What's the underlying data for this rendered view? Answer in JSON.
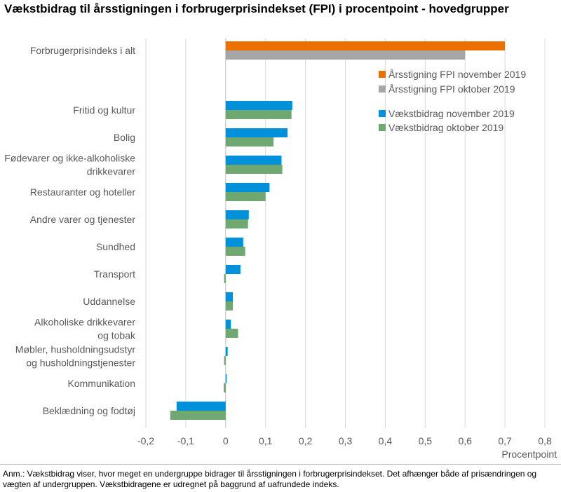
{
  "title": "Vækstbidrag til årsstigningen i forbrugerprisindekset (FPI) i procentpoint - hovedgrupper",
  "note": "Anm.: Vækstbidrag viser, hvor meget en undergruppe bidrager til årsstigningen i forbrugerprisindekset. Det afhænger både af prisændringen og vægten af undergruppen. Vækstbidragene er udregnet på baggrund af uafrundede indeks.",
  "chart_data": {
    "type": "bar",
    "orientation": "horizontal",
    "title": "Vækstbidrag til årsstigningen i forbrugerprisindekset (FPI) i procentpoint - hovedgrupper",
    "xlabel": "Procentpoint",
    "xlim": [
      -0.2,
      0.8
    ],
    "ticks": [
      "-0,2",
      "-0,1",
      "0",
      "0,1",
      "0,2",
      "0,3",
      "0,4",
      "0,5",
      "0,6",
      "0,7",
      "0,8"
    ],
    "tick_values": [
      -0.2,
      -0.1,
      0,
      0.1,
      0.2,
      0.3,
      0.4,
      0.5,
      0.6,
      0.7,
      0.8
    ],
    "grid": true,
    "legend_position": "top-right",
    "total": {
      "category": "Forbrugerprisindeks i alt",
      "series": [
        {
          "name": "Årsstigning FPI november 2019",
          "color": "#EC7000",
          "value": 0.7
        },
        {
          "name": "Årsstigning FPI oktober 2019",
          "color": "#A6A6A6",
          "value": 0.6
        }
      ]
    },
    "categories": [
      [
        "Fritid og kultur"
      ],
      [
        "Bolig"
      ],
      [
        "Fødevarer og ikke-alkoholiske",
        "drikkevarer"
      ],
      [
        "Restauranter og hoteller"
      ],
      [
        "Andre varer og tjenester"
      ],
      [
        "Sundhed"
      ],
      [
        "Transport"
      ],
      [
        "Uddannelse"
      ],
      [
        "Alkoholiske drikkevarer",
        "og tobak"
      ],
      [
        "Møbler, husholdningsudstyr",
        "og husholdningstjenester"
      ],
      [
        "Kommunikation"
      ],
      [
        "Beklædning og fodtøj"
      ]
    ],
    "series": [
      {
        "name": "Vækstbidrag november 2019",
        "color": "#0091DA",
        "values": [
          0.167,
          0.155,
          0.14,
          0.11,
          0.058,
          0.044,
          0.037,
          0.018,
          0.013,
          0.005,
          0.002,
          -0.123
        ]
      },
      {
        "name": "Vækstbidrag oktober 2019",
        "color": "#6FA870",
        "values": [
          0.165,
          0.12,
          0.142,
          0.1,
          0.056,
          0.049,
          -0.004,
          0.018,
          0.031,
          -0.004,
          -0.005,
          -0.139
        ]
      }
    ]
  }
}
